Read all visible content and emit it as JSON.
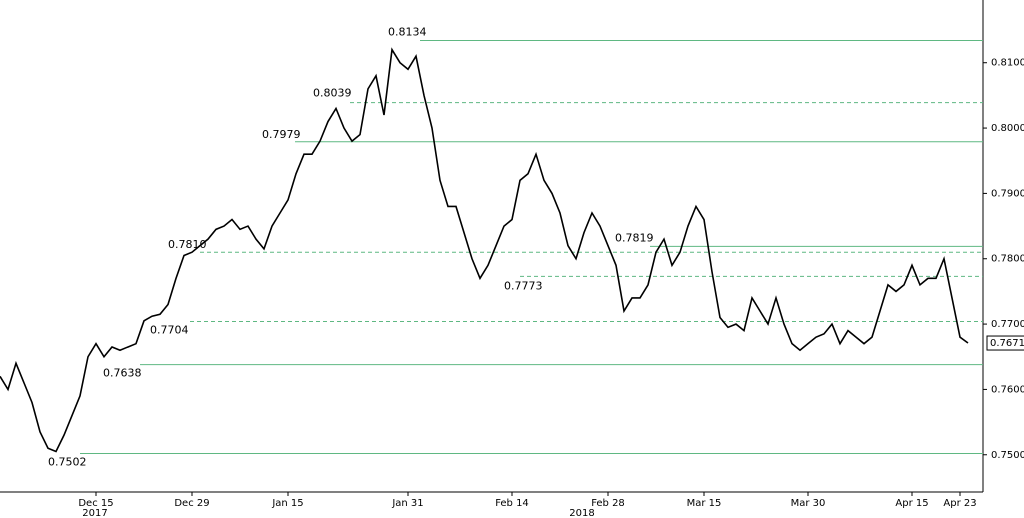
{
  "chart_data": {
    "type": "line",
    "categories": [
      null,
      null,
      null,
      null,
      null,
      null,
      null,
      null,
      null,
      null,
      null,
      null,
      "Dec 15",
      null,
      null,
      null,
      null,
      null,
      null,
      null,
      null,
      null,
      null,
      null,
      "Dec 29",
      null,
      null,
      null,
      null,
      null,
      null,
      null,
      null,
      null,
      null,
      null,
      "Jan 15",
      null,
      null,
      null,
      null,
      null,
      null,
      null,
      null,
      null,
      null,
      null,
      null,
      null,
      null,
      "Jan 31",
      null,
      null,
      null,
      null,
      null,
      null,
      null,
      null,
      null,
      null,
      null,
      null,
      "Feb 14",
      null,
      null,
      null,
      null,
      null,
      null,
      null,
      null,
      null,
      null,
      null,
      "Feb 28",
      null,
      null,
      null,
      null,
      null,
      null,
      null,
      null,
      null,
      null,
      null,
      "Mar 15",
      null,
      null,
      null,
      null,
      null,
      null,
      null,
      null,
      null,
      null,
      null,
      null,
      "Mar 30",
      null,
      null,
      null,
      null,
      null,
      null,
      null,
      null,
      null,
      null,
      null,
      null,
      "Apr 15",
      null,
      null,
      null,
      null,
      null,
      "Apr 23",
      null
    ],
    "series": [
      {
        "color": "#000000",
        "values": [
          0.762,
          0.76,
          0.764,
          0.761,
          0.758,
          0.7535,
          0.751,
          0.7505,
          0.753,
          0.756,
          0.759,
          0.765,
          0.767,
          0.765,
          0.7665,
          0.766,
          0.7665,
          0.767,
          0.7705,
          0.7712,
          0.7715,
          0.773,
          0.777,
          0.7805,
          0.781,
          0.782,
          0.783,
          0.7845,
          0.785,
          0.786,
          0.7845,
          0.785,
          0.783,
          0.7815,
          0.785,
          0.787,
          0.789,
          0.793,
          0.796,
          0.796,
          0.798,
          0.801,
          0.803,
          0.8,
          0.798,
          0.799,
          0.806,
          0.808,
          0.802,
          0.812,
          0.81,
          0.809,
          0.811,
          0.805,
          0.8,
          0.792,
          0.788,
          0.788,
          0.784,
          0.78,
          0.777,
          0.779,
          0.782,
          0.785,
          0.786,
          0.792,
          0.793,
          0.796,
          0.792,
          0.79,
          0.787,
          0.782,
          0.78,
          0.784,
          0.787,
          0.785,
          0.782,
          0.779,
          0.772,
          0.774,
          0.774,
          0.776,
          0.781,
          0.783,
          0.779,
          0.781,
          0.785,
          0.788,
          0.786,
          0.778,
          0.771,
          0.7695,
          0.77,
          0.769,
          0.774,
          0.772,
          0.77,
          0.774,
          0.77,
          0.767,
          0.766,
          0.767,
          0.768,
          0.7685,
          0.77,
          0.767,
          0.769,
          0.768,
          0.767,
          0.768,
          0.772,
          0.776,
          0.775,
          0.776,
          0.779,
          0.776,
          0.777,
          0.777,
          0.78,
          0.774,
          0.768,
          0.7671
        ]
      }
    ],
    "years": [
      "2017",
      "2018"
    ],
    "ylim": [
      0.7443,
      0.8196
    ],
    "yticks": [
      {
        "value": 0.75,
        "label": "0.7500"
      },
      {
        "value": 0.76,
        "label": "0.7600"
      },
      {
        "value": 0.77,
        "label": "0.7700"
      },
      {
        "value": 0.78,
        "label": "0.7800"
      },
      {
        "value": 0.79,
        "label": "0.7900"
      },
      {
        "value": 0.8,
        "label": "0.8000"
      },
      {
        "value": 0.81,
        "label": "0.8100"
      }
    ],
    "level_color": "#5fb882",
    "levels": [
      {
        "value": 0.8134,
        "style": "solid"
      },
      {
        "value": 0.8039,
        "style": "dashed"
      },
      {
        "value": 0.7979,
        "style": "solid"
      },
      {
        "value": 0.781,
        "label": "0.7810",
        "style": "dashed"
      },
      {
        "value": 0.7819,
        "style": "solid"
      },
      {
        "value": 0.7773,
        "style": "dashed"
      },
      {
        "value": 0.7704,
        "style": "dashed"
      },
      {
        "value": 0.7638,
        "style": "solid"
      },
      {
        "value": 0.7502,
        "style": "solid"
      }
    ]
  }
}
